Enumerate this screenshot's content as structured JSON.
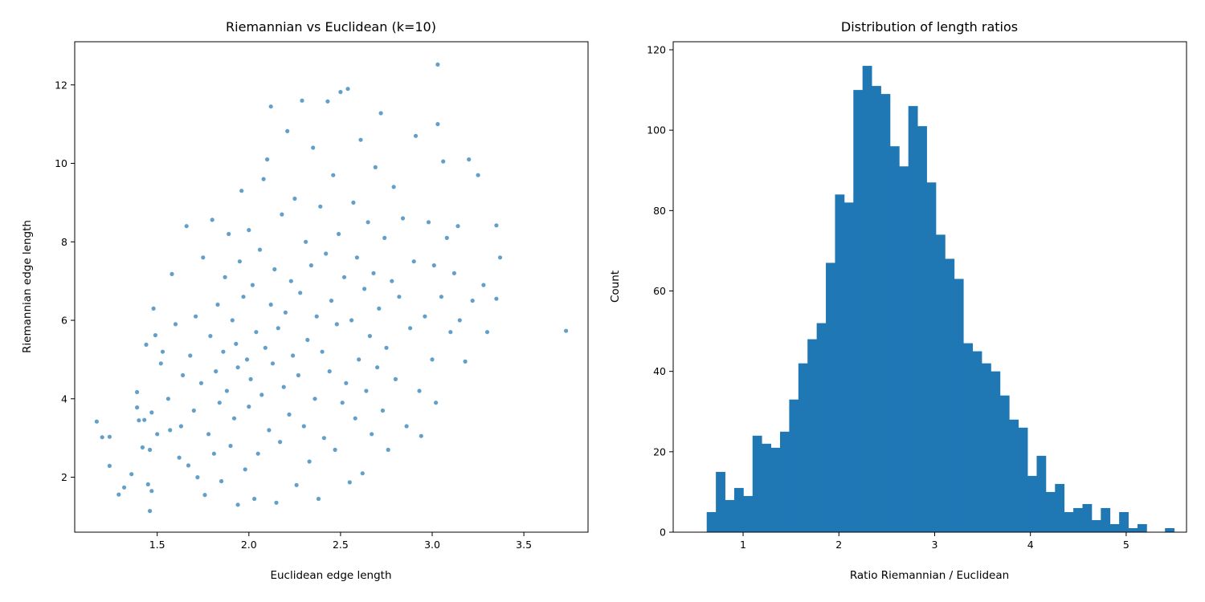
{
  "chart_data": [
    {
      "type": "scatter",
      "title": "Riemannian vs Euclidean (k=10)",
      "xlabel": "Euclidean edge length",
      "ylabel": "Riemannian edge length",
      "xlim": [
        1.05,
        3.85
      ],
      "ylim": [
        0.6,
        13.1
      ],
      "xticks": [
        1.5,
        2.0,
        2.5,
        3.0,
        3.5
      ],
      "xtick_labels": [
        "1.5",
        "2.0",
        "2.5",
        "3.0",
        "3.5"
      ],
      "yticks": [
        2,
        4,
        6,
        8,
        10,
        12
      ],
      "ytick_labels": [
        "2",
        "4",
        "6",
        "8",
        "10",
        "12"
      ],
      "color": "#1f77b4",
      "point_alpha": 0.7,
      "points": [
        [
          1.17,
          3.42
        ],
        [
          1.2,
          3.02
        ],
        [
          1.24,
          3.03
        ],
        [
          1.24,
          2.29
        ],
        [
          1.29,
          1.56
        ],
        [
          1.32,
          1.74
        ],
        [
          1.36,
          2.08
        ],
        [
          1.39,
          3.78
        ],
        [
          1.39,
          4.17
        ],
        [
          1.4,
          3.45
        ],
        [
          1.42,
          2.76
        ],
        [
          1.43,
          3.46
        ],
        [
          1.44,
          5.38
        ],
        [
          1.45,
          1.82
        ],
        [
          1.46,
          1.14
        ],
        [
          1.46,
          2.7
        ],
        [
          1.47,
          1.65
        ],
        [
          1.47,
          3.65
        ],
        [
          1.48,
          6.3
        ],
        [
          1.49,
          5.62
        ],
        [
          1.5,
          3.1
        ],
        [
          1.52,
          4.9
        ],
        [
          1.53,
          5.2
        ],
        [
          1.56,
          4.0
        ],
        [
          1.57,
          3.2
        ],
        [
          1.58,
          7.18
        ],
        [
          1.6,
          5.9
        ],
        [
          1.62,
          2.5
        ],
        [
          1.63,
          3.3
        ],
        [
          1.64,
          4.6
        ],
        [
          1.66,
          8.4
        ],
        [
          1.67,
          2.3
        ],
        [
          1.68,
          5.1
        ],
        [
          1.7,
          3.7
        ],
        [
          1.71,
          6.1
        ],
        [
          1.72,
          2.0
        ],
        [
          1.74,
          4.4
        ],
        [
          1.75,
          7.6
        ],
        [
          1.76,
          1.55
        ],
        [
          1.78,
          3.1
        ],
        [
          1.79,
          5.6
        ],
        [
          1.8,
          8.56
        ],
        [
          1.81,
          2.6
        ],
        [
          1.82,
          4.7
        ],
        [
          1.83,
          6.4
        ],
        [
          1.84,
          3.9
        ],
        [
          1.85,
          1.9
        ],
        [
          1.86,
          5.2
        ],
        [
          1.87,
          7.1
        ],
        [
          1.88,
          4.2
        ],
        [
          1.89,
          8.2
        ],
        [
          1.9,
          2.8
        ],
        [
          1.91,
          6.0
        ],
        [
          1.92,
          3.5
        ],
        [
          1.93,
          5.4
        ],
        [
          1.94,
          1.3
        ],
        [
          1.94,
          4.8
        ],
        [
          1.95,
          7.5
        ],
        [
          1.96,
          9.3
        ],
        [
          1.97,
          6.6
        ],
        [
          1.98,
          2.2
        ],
        [
          1.99,
          5.0
        ],
        [
          2.0,
          3.8
        ],
        [
          2.0,
          8.3
        ],
        [
          2.01,
          4.5
        ],
        [
          2.02,
          6.9
        ],
        [
          2.03,
          1.45
        ],
        [
          2.04,
          5.7
        ],
        [
          2.05,
          2.6
        ],
        [
          2.06,
          7.8
        ],
        [
          2.07,
          4.1
        ],
        [
          2.08,
          9.6
        ],
        [
          2.09,
          5.3
        ],
        [
          2.1,
          10.1
        ],
        [
          2.11,
          3.2
        ],
        [
          2.12,
          6.4
        ],
        [
          2.12,
          11.45
        ],
        [
          2.13,
          4.9
        ],
        [
          2.14,
          7.3
        ],
        [
          2.15,
          1.35
        ],
        [
          2.16,
          5.8
        ],
        [
          2.17,
          2.9
        ],
        [
          2.18,
          8.7
        ],
        [
          2.19,
          4.3
        ],
        [
          2.2,
          6.2
        ],
        [
          2.21,
          10.82
        ],
        [
          2.22,
          3.6
        ],
        [
          2.23,
          7.0
        ],
        [
          2.24,
          5.1
        ],
        [
          2.25,
          9.1
        ],
        [
          2.26,
          1.8
        ],
        [
          2.27,
          4.6
        ],
        [
          2.28,
          6.7
        ],
        [
          2.29,
          11.6
        ],
        [
          2.3,
          3.3
        ],
        [
          2.31,
          8.0
        ],
        [
          2.32,
          5.5
        ],
        [
          2.33,
          2.4
        ],
        [
          2.34,
          7.4
        ],
        [
          2.35,
          10.4
        ],
        [
          2.36,
          4.0
        ],
        [
          2.37,
          6.1
        ],
        [
          2.38,
          1.45
        ],
        [
          2.39,
          8.9
        ],
        [
          2.4,
          5.2
        ],
        [
          2.41,
          3.0
        ],
        [
          2.42,
          7.7
        ],
        [
          2.43,
          11.58
        ],
        [
          2.44,
          4.7
        ],
        [
          2.45,
          6.5
        ],
        [
          2.46,
          9.7
        ],
        [
          2.47,
          2.7
        ],
        [
          2.48,
          5.9
        ],
        [
          2.49,
          8.2
        ],
        [
          2.5,
          11.82
        ],
        [
          2.51,
          3.9
        ],
        [
          2.52,
          7.1
        ],
        [
          2.53,
          4.4
        ],
        [
          2.54,
          11.9
        ],
        [
          2.55,
          1.87
        ],
        [
          2.56,
          6.0
        ],
        [
          2.57,
          9.0
        ],
        [
          2.58,
          3.5
        ],
        [
          2.59,
          7.6
        ],
        [
          2.6,
          5.0
        ],
        [
          2.61,
          10.6
        ],
        [
          2.62,
          2.1
        ],
        [
          2.63,
          6.8
        ],
        [
          2.64,
          4.2
        ],
        [
          2.65,
          8.5
        ],
        [
          2.66,
          5.6
        ],
        [
          2.67,
          3.1
        ],
        [
          2.68,
          7.2
        ],
        [
          2.69,
          9.9
        ],
        [
          2.7,
          4.8
        ],
        [
          2.71,
          6.3
        ],
        [
          2.72,
          11.28
        ],
        [
          2.73,
          3.7
        ],
        [
          2.74,
          8.1
        ],
        [
          2.75,
          5.3
        ],
        [
          2.76,
          2.7
        ],
        [
          2.78,
          7.0
        ],
        [
          2.79,
          9.4
        ],
        [
          2.8,
          4.5
        ],
        [
          2.82,
          6.6
        ],
        [
          2.84,
          8.6
        ],
        [
          2.86,
          3.3
        ],
        [
          2.88,
          5.8
        ],
        [
          2.9,
          7.5
        ],
        [
          2.91,
          10.7
        ],
        [
          2.93,
          4.2
        ],
        [
          2.94,
          3.05
        ],
        [
          2.96,
          6.1
        ],
        [
          2.98,
          8.5
        ],
        [
          3.0,
          5.0
        ],
        [
          3.01,
          7.4
        ],
        [
          3.02,
          3.9
        ],
        [
          3.03,
          11.0
        ],
        [
          3.03,
          12.52
        ],
        [
          3.05,
          6.6
        ],
        [
          3.06,
          10.05
        ],
        [
          3.08,
          8.1
        ],
        [
          3.1,
          5.7
        ],
        [
          3.12,
          7.2
        ],
        [
          3.14,
          8.4
        ],
        [
          3.15,
          6.0
        ],
        [
          3.18,
          4.95
        ],
        [
          3.2,
          10.1
        ],
        [
          3.22,
          6.5
        ],
        [
          3.25,
          9.7
        ],
        [
          3.28,
          6.9
        ],
        [
          3.3,
          5.7
        ],
        [
          3.35,
          8.42
        ],
        [
          3.35,
          6.55
        ],
        [
          3.37,
          7.6
        ],
        [
          3.73,
          5.73
        ]
      ]
    },
    {
      "type": "bar",
      "subtype": "histogram",
      "title": "Distribution of length ratios",
      "xlabel": "Ratio Riemannian / Euclidean",
      "ylabel": "Count",
      "xlim": [
        0.27,
        5.63
      ],
      "ylim": [
        0,
        122
      ],
      "xticks": [
        1,
        2,
        3,
        4,
        5
      ],
      "xtick_labels": [
        "1",
        "2",
        "3",
        "4",
        "5"
      ],
      "yticks": [
        0,
        20,
        40,
        60,
        80,
        100,
        120
      ],
      "ytick_labels": [
        "0",
        "20",
        "40",
        "60",
        "80",
        "100",
        "120"
      ],
      "color": "#1f77b4",
      "bin_start": 0.62,
      "bin_width": 0.0957,
      "values": [
        5,
        15,
        8,
        11,
        9,
        24,
        22,
        21,
        25,
        33,
        42,
        48,
        52,
        67,
        84,
        82,
        110,
        116,
        111,
        109,
        96,
        91,
        106,
        101,
        87,
        74,
        68,
        63,
        47,
        45,
        42,
        40,
        34,
        28,
        26,
        14,
        19,
        10,
        12,
        5,
        6,
        7,
        3,
        6,
        2,
        5,
        1,
        2,
        0,
        0,
        1
      ]
    }
  ]
}
